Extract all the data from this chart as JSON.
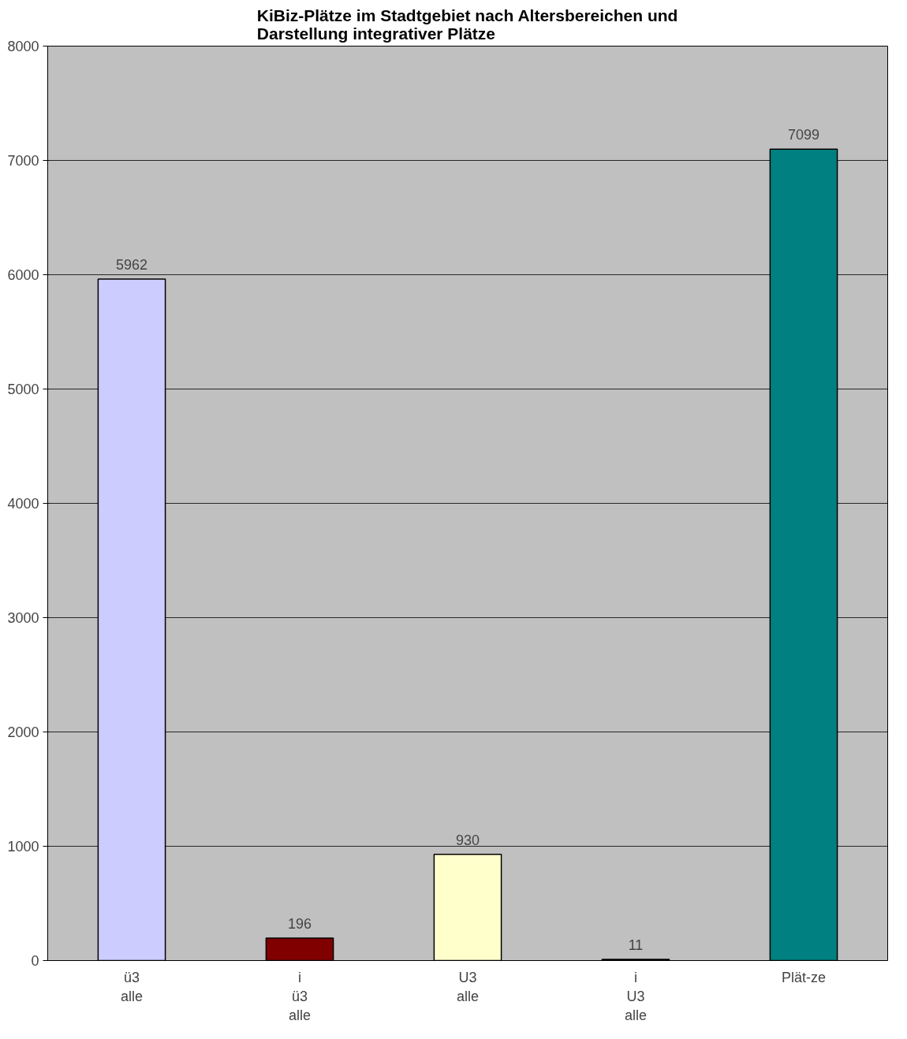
{
  "chart_data": {
    "type": "bar",
    "title": "KiBiz-Plätze im Stadtgebiet nach Altersbereichen und\nDarstellung integrativer Plätze",
    "categories": [
      "ü3\nalle",
      "i\nü3\nalle",
      "U3\nalle",
      "i\nU3\nalle",
      "Plät-ze"
    ],
    "values": [
      5962,
      196,
      930,
      11,
      7099
    ],
    "colors": [
      "#ccccff",
      "#800000",
      "#ffffcc",
      "#660066",
      "#008080"
    ],
    "ylim": [
      0,
      8000
    ],
    "yticks": [
      0,
      1000,
      2000,
      3000,
      4000,
      5000,
      6000,
      7000,
      8000
    ],
    "grid": "y",
    "data_labels": true
  }
}
